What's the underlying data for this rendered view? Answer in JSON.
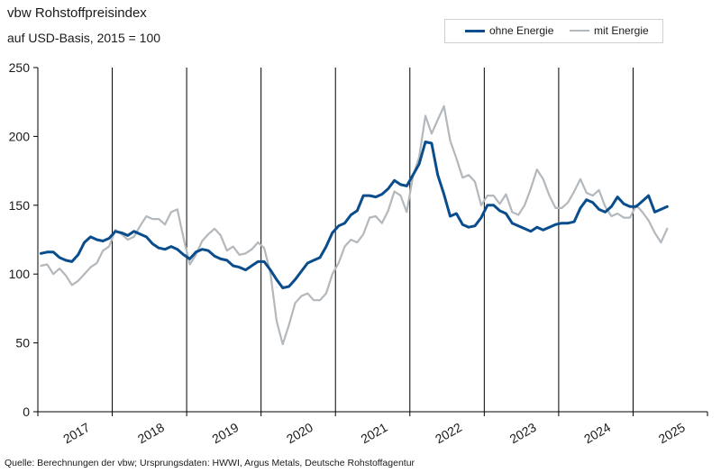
{
  "header": {
    "title": "vbw Rohstoffpreisindex",
    "subtitle": "auf USD-Basis, 2015 = 100"
  },
  "footer": {
    "source": "Quelle: Berechnungen der vbw; Ursprungsdaten: HWWI, Argus Metals, Deutsche Rohstoffagentur"
  },
  "colors": {
    "ohne_energie": "#0a4d8c",
    "mit_energie": "#b3b8bd"
  },
  "chart_data": {
    "type": "line",
    "title": "vbw Rohstoffpreisindex",
    "subtitle": "auf USD-Basis, 2015 = 100",
    "ylim": [
      0,
      250
    ],
    "yticks": [
      0,
      50,
      100,
      150,
      200,
      250
    ],
    "years": [
      "2017",
      "2018",
      "2019",
      "2020",
      "2021",
      "2022",
      "2023",
      "2024",
      "2025"
    ],
    "x_start": "2017-01",
    "x_end": "2025-02",
    "legend_position": "top-right",
    "grid": "vertical year separators",
    "series": [
      {
        "name": "ohne Energie",
        "color": "#0a4d8c",
        "values": [
          115,
          116,
          116,
          112,
          110,
          109,
          114,
          123,
          127,
          125,
          124,
          126,
          131,
          130,
          128,
          131,
          129,
          127,
          122,
          119,
          118,
          120,
          118,
          114,
          111,
          116,
          118,
          117,
          113,
          111,
          110,
          106,
          105,
          103,
          106,
          109,
          109,
          103,
          96,
          90,
          91,
          96,
          102,
          108,
          110,
          112,
          120,
          130,
          135,
          137,
          143,
          146,
          157,
          157,
          156,
          158,
          162,
          168,
          165,
          164,
          172,
          180,
          196,
          195,
          172,
          158,
          142,
          144,
          136,
          134,
          135,
          141,
          150,
          150,
          146,
          144,
          137,
          135,
          133,
          131,
          134,
          132,
          134,
          136,
          137,
          137,
          138,
          148,
          154,
          152,
          147,
          145,
          149,
          156,
          151,
          149,
          149,
          153,
          157,
          145,
          147,
          149
        ]
      },
      {
        "name": "mit Energie",
        "color": "#b3b8bd",
        "values": [
          106,
          107,
          100,
          104,
          99,
          92,
          95,
          100,
          105,
          108,
          117,
          120,
          132,
          129,
          125,
          127,
          135,
          142,
          140,
          140,
          136,
          145,
          147,
          126,
          107,
          114,
          124,
          129,
          133,
          128,
          117,
          120,
          114,
          115,
          118,
          123,
          119,
          101,
          66,
          49,
          63,
          79,
          84,
          86,
          81,
          81,
          86,
          100,
          108,
          120,
          125,
          123,
          129,
          141,
          142,
          137,
          146,
          160,
          157,
          145,
          171,
          185,
          215,
          202,
          212,
          222,
          197,
          184,
          170,
          172,
          167,
          150,
          157,
          157,
          151,
          158,
          145,
          143,
          150,
          162,
          176,
          169,
          157,
          148,
          148,
          152,
          160,
          169,
          159,
          157,
          161,
          149,
          142,
          144,
          141,
          141,
          150,
          145,
          139,
          130,
          123,
          133
        ]
      }
    ]
  }
}
